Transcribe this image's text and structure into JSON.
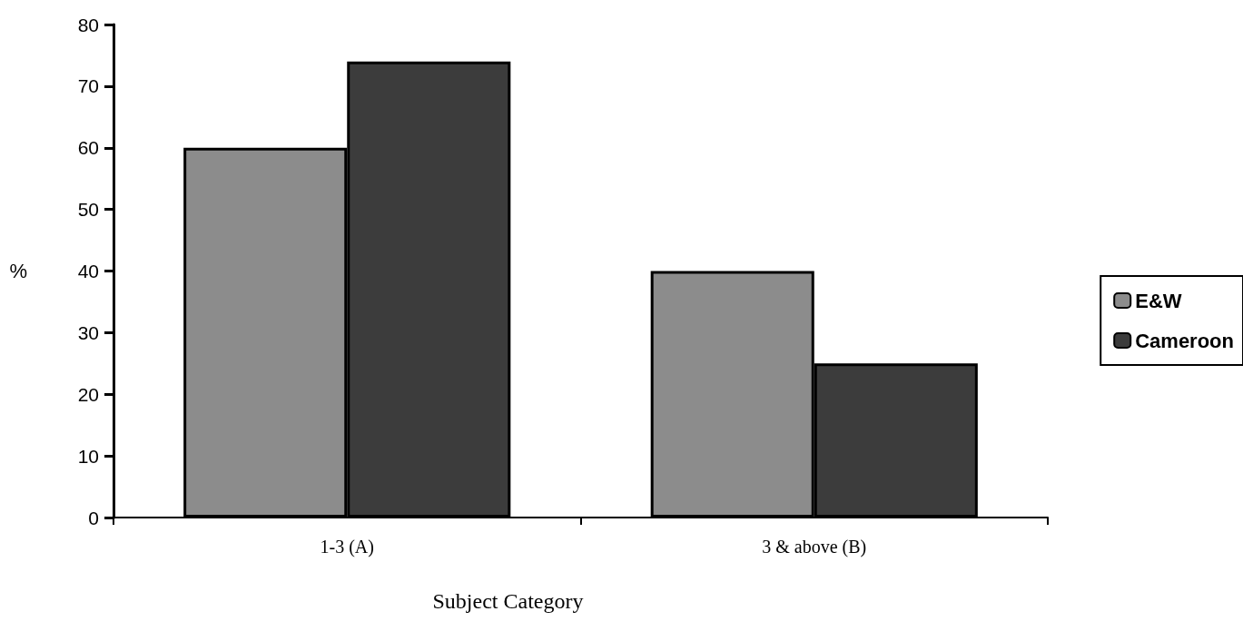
{
  "chart_data": {
    "type": "bar",
    "xlabel": "Subject Category",
    "ylabel": "%",
    "categories": [
      "1-3 (A)",
      "3 & above (B)"
    ],
    "series": [
      {
        "name": "E&W",
        "color": "#8c8c8c",
        "values": [
          60,
          40
        ]
      },
      {
        "name": "Cameroon",
        "color": "#3c3c3c",
        "values": [
          74,
          25
        ]
      }
    ],
    "ylim": [
      0,
      80
    ],
    "yticks": [
      0,
      10,
      20,
      30,
      40,
      50,
      60,
      70,
      80
    ],
    "grid": false,
    "legend": "right"
  }
}
